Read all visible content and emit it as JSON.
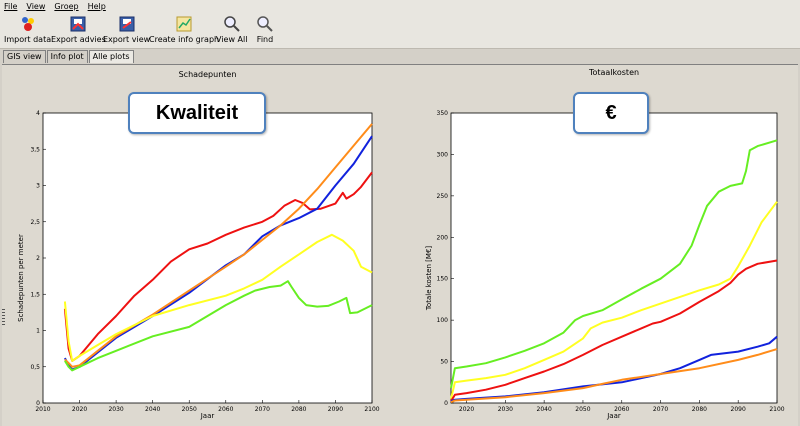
{
  "menu": [
    "File",
    "View",
    "Groep",
    "Help"
  ],
  "toolbar": [
    {
      "label": "Import data",
      "icon": "import-data-icon"
    },
    {
      "label": "Export advies",
      "icon": "export-advies-icon"
    },
    {
      "label": "Export view",
      "icon": "export-view-icon"
    },
    {
      "label": "Create info graph",
      "icon": "info-graph-icon"
    },
    {
      "label": "View All",
      "icon": "view-all-icon"
    },
    {
      "label": "Find",
      "icon": "find-icon"
    }
  ],
  "tabs": [
    {
      "label": "GIS view",
      "active": false
    },
    {
      "label": "Info plot",
      "active": false
    },
    {
      "label": "Alle plots",
      "active": true
    }
  ],
  "callouts": {
    "left": "Kwaliteit",
    "right": "€"
  },
  "colors": {
    "red": "#ee1111",
    "blue": "#1122dd",
    "orange": "#ff8c1a",
    "yellow": "#ffff22",
    "green": "#66ee22"
  },
  "chart_data": [
    {
      "type": "line",
      "title": "Schadepunten",
      "xlabel": "Jaar",
      "ylabel": "Schadepunten per meter",
      "xlim": [
        2010,
        2100
      ],
      "ylim": [
        0,
        4
      ],
      "xticks": [
        2010,
        2020,
        2030,
        2040,
        2050,
        2060,
        2070,
        2080,
        2090,
        2100
      ],
      "xtick_labels": [
        "2010",
        "2020",
        "2030",
        "2040",
        "2050",
        "2060",
        "2070",
        "2080",
        "2090",
        "2100"
      ],
      "yticks": [
        0,
        0.5,
        1,
        1.5,
        2,
        2.5,
        3,
        3.5,
        4
      ],
      "ytick_labels": [
        "0",
        "0,5",
        "1",
        "1,5",
        "2",
        "2,5",
        "3",
        "3,5",
        "4"
      ],
      "series": [
        {
          "color": "red",
          "points": [
            [
              2016,
              1.3
            ],
            [
              2017,
              0.75
            ],
            [
              2018,
              0.58
            ],
            [
              2020,
              0.65
            ],
            [
              2025,
              0.95
            ],
            [
              2030,
              1.2
            ],
            [
              2035,
              1.48
            ],
            [
              2040,
              1.7
            ],
            [
              2045,
              1.95
            ],
            [
              2050,
              2.12
            ],
            [
              2055,
              2.2
            ],
            [
              2060,
              2.32
            ],
            [
              2065,
              2.42
            ],
            [
              2070,
              2.5
            ],
            [
              2073,
              2.58
            ],
            [
              2076,
              2.72
            ],
            [
              2079,
              2.8
            ],
            [
              2081,
              2.76
            ],
            [
              2083,
              2.67
            ],
            [
              2086,
              2.68
            ],
            [
              2090,
              2.75
            ],
            [
              2092,
              2.9
            ],
            [
              2093,
              2.82
            ],
            [
              2095,
              2.88
            ],
            [
              2097,
              2.98
            ],
            [
              2100,
              3.18
            ]
          ]
        },
        {
          "color": "blue",
          "points": [
            [
              2016,
              0.62
            ],
            [
              2017,
              0.52
            ],
            [
              2018,
              0.46
            ],
            [
              2020,
              0.5
            ],
            [
              2025,
              0.7
            ],
            [
              2030,
              0.9
            ],
            [
              2040,
              1.2
            ],
            [
              2050,
              1.52
            ],
            [
              2060,
              1.9
            ],
            [
              2065,
              2.05
            ],
            [
              2070,
              2.3
            ],
            [
              2075,
              2.45
            ],
            [
              2080,
              2.55
            ],
            [
              2085,
              2.68
            ],
            [
              2090,
              3.0
            ],
            [
              2095,
              3.3
            ],
            [
              2100,
              3.68
            ]
          ]
        },
        {
          "color": "orange",
          "points": [
            [
              2016,
              0.6
            ],
            [
              2017,
              0.55
            ],
            [
              2018,
              0.5
            ],
            [
              2020,
              0.52
            ],
            [
              2025,
              0.72
            ],
            [
              2030,
              0.92
            ],
            [
              2040,
              1.22
            ],
            [
              2050,
              1.55
            ],
            [
              2060,
              1.88
            ],
            [
              2065,
              2.05
            ],
            [
              2070,
              2.25
            ],
            [
              2075,
              2.45
            ],
            [
              2080,
              2.68
            ],
            [
              2085,
              2.95
            ],
            [
              2090,
              3.25
            ],
            [
              2095,
              3.55
            ],
            [
              2100,
              3.85
            ]
          ]
        },
        {
          "color": "yellow",
          "points": [
            [
              2016,
              1.4
            ],
            [
              2017,
              0.85
            ],
            [
              2018,
              0.58
            ],
            [
              2020,
              0.65
            ],
            [
              2025,
              0.8
            ],
            [
              2030,
              0.95
            ],
            [
              2040,
              1.2
            ],
            [
              2050,
              1.35
            ],
            [
              2060,
              1.48
            ],
            [
              2065,
              1.58
            ],
            [
              2070,
              1.7
            ],
            [
              2075,
              1.88
            ],
            [
              2080,
              2.05
            ],
            [
              2085,
              2.22
            ],
            [
              2089,
              2.32
            ],
            [
              2092,
              2.24
            ],
            [
              2095,
              2.1
            ],
            [
              2097,
              1.88
            ],
            [
              2100,
              1.8
            ]
          ]
        },
        {
          "color": "green",
          "points": [
            [
              2016,
              0.58
            ],
            [
              2017,
              0.5
            ],
            [
              2018,
              0.45
            ],
            [
              2020,
              0.5
            ],
            [
              2025,
              0.62
            ],
            [
              2030,
              0.72
            ],
            [
              2040,
              0.92
            ],
            [
              2050,
              1.05
            ],
            [
              2055,
              1.2
            ],
            [
              2060,
              1.35
            ],
            [
              2065,
              1.48
            ],
            [
              2068,
              1.55
            ],
            [
              2072,
              1.6
            ],
            [
              2075,
              1.62
            ],
            [
              2077,
              1.68
            ],
            [
              2078,
              1.6
            ],
            [
              2080,
              1.45
            ],
            [
              2082,
              1.35
            ],
            [
              2085,
              1.33
            ],
            [
              2088,
              1.34
            ],
            [
              2091,
              1.4
            ],
            [
              2093,
              1.45
            ],
            [
              2094,
              1.24
            ],
            [
              2096,
              1.25
            ],
            [
              2100,
              1.35
            ]
          ]
        }
      ]
    },
    {
      "type": "line",
      "title": "Totaalkosten",
      "xlabel": "Jaar",
      "ylabel": "Totale kosten [M€]",
      "xlim": [
        2016,
        2100
      ],
      "ylim": [
        0,
        350
      ],
      "xticks": [
        2020,
        2030,
        2040,
        2050,
        2060,
        2070,
        2080,
        2090,
        2100
      ],
      "xtick_labels": [
        "2020",
        "2030",
        "2040",
        "2050",
        "2060",
        "2070",
        "2080",
        "2090",
        "2100"
      ],
      "yticks": [
        0,
        50,
        100,
        150,
        200,
        250,
        300,
        350
      ],
      "ytick_labels": [
        "0",
        "50",
        "100",
        "150",
        "200",
        "250",
        "300",
        "350"
      ],
      "series": [
        {
          "color": "green",
          "points": [
            [
              2016,
              18
            ],
            [
              2017,
              42
            ],
            [
              2020,
              44
            ],
            [
              2025,
              48
            ],
            [
              2030,
              55
            ],
            [
              2035,
              63
            ],
            [
              2040,
              72
            ],
            [
              2045,
              85
            ],
            [
              2048,
              100
            ],
            [
              2050,
              105
            ],
            [
              2055,
              112
            ],
            [
              2060,
              125
            ],
            [
              2065,
              138
            ],
            [
              2070,
              150
            ],
            [
              2075,
              168
            ],
            [
              2078,
              190
            ],
            [
              2080,
              215
            ],
            [
              2082,
              238
            ],
            [
              2085,
              255
            ],
            [
              2088,
              262
            ],
            [
              2091,
              265
            ],
            [
              2092,
              280
            ],
            [
              2093,
              305
            ],
            [
              2095,
              310
            ],
            [
              2100,
              317
            ]
          ]
        },
        {
          "color": "yellow",
          "points": [
            [
              2016,
              5
            ],
            [
              2017,
              25
            ],
            [
              2020,
              27
            ],
            [
              2025,
              30
            ],
            [
              2030,
              34
            ],
            [
              2035,
              42
            ],
            [
              2040,
              52
            ],
            [
              2045,
              62
            ],
            [
              2050,
              78
            ],
            [
              2052,
              90
            ],
            [
              2055,
              97
            ],
            [
              2060,
              103
            ],
            [
              2065,
              112
            ],
            [
              2070,
              120
            ],
            [
              2075,
              128
            ],
            [
              2080,
              136
            ],
            [
              2085,
              143
            ],
            [
              2088,
              150
            ],
            [
              2090,
              165
            ],
            [
              2093,
              190
            ],
            [
              2096,
              218
            ],
            [
              2100,
              243
            ]
          ]
        },
        {
          "color": "red",
          "points": [
            [
              2016,
              2
            ],
            [
              2017,
              10
            ],
            [
              2020,
              12
            ],
            [
              2025,
              16
            ],
            [
              2030,
              22
            ],
            [
              2035,
              30
            ],
            [
              2040,
              38
            ],
            [
              2045,
              47
            ],
            [
              2050,
              58
            ],
            [
              2055,
              70
            ],
            [
              2060,
              80
            ],
            [
              2065,
              90
            ],
            [
              2068,
              96
            ],
            [
              2070,
              98
            ],
            [
              2075,
              108
            ],
            [
              2080,
              122
            ],
            [
              2085,
              135
            ],
            [
              2088,
              145
            ],
            [
              2090,
              155
            ],
            [
              2092,
              162
            ],
            [
              2095,
              168
            ],
            [
              2100,
              172
            ]
          ]
        },
        {
          "color": "blue",
          "points": [
            [
              2016,
              2
            ],
            [
              2017,
              4
            ],
            [
              2020,
              5
            ],
            [
              2030,
              8
            ],
            [
              2040,
              13
            ],
            [
              2050,
              20
            ],
            [
              2060,
              25
            ],
            [
              2065,
              30
            ],
            [
              2070,
              35
            ],
            [
              2075,
              42
            ],
            [
              2080,
              52
            ],
            [
              2083,
              58
            ],
            [
              2090,
              62
            ],
            [
              2095,
              68
            ],
            [
              2098,
              72
            ],
            [
              2100,
              80
            ]
          ]
        },
        {
          "color": "orange",
          "points": [
            [
              2016,
              1
            ],
            [
              2017,
              3
            ],
            [
              2020,
              4
            ],
            [
              2030,
              7
            ],
            [
              2040,
              12
            ],
            [
              2050,
              18
            ],
            [
              2055,
              23
            ],
            [
              2060,
              28
            ],
            [
              2070,
              35
            ],
            [
              2080,
              42
            ],
            [
              2090,
              52
            ],
            [
              2095,
              58
            ],
            [
              2100,
              65
            ]
          ]
        }
      ]
    }
  ]
}
